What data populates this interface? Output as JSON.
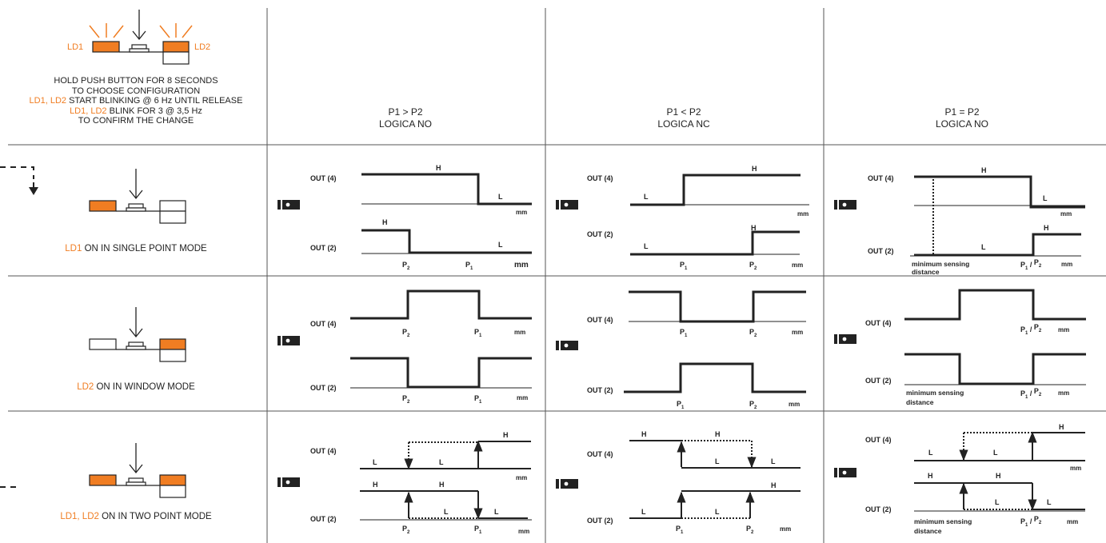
{
  "header": {
    "led_labels": {
      "ld1": "LD1",
      "ld2": "LD2"
    },
    "instructions": {
      "line1": "HOLD PUSH BUTTON FOR 8 SECONDS",
      "line2": "TO  CHOOSE CONFIGURATION",
      "line3_prefix": "LD1, LD2",
      "line3_rest": " START BLINKING @ 6 Hz UNTIL RELEASE",
      "line4_prefix": "LD1, LD2",
      "line4_rest": " BLINK FOR 3 @ 3,5 Hz",
      "line5": "TO CONFIRM THE CHANGE"
    },
    "columns": [
      {
        "condition": "P1 > P2",
        "logic": "LOGICA NO"
      },
      {
        "condition": "P1 < P2",
        "logic": "LOGICA NC"
      },
      {
        "condition": "P1 = P2",
        "logic": "LOGICA NO"
      }
    ]
  },
  "modes": [
    {
      "led": "LD1",
      "text": " ON IN SINGLE POINT MODE"
    },
    {
      "led": "LD2",
      "text": " ON IN WINDOW MODE"
    },
    {
      "led": "LD1, LD2",
      "text": " ON IN TWO POINT MODE"
    }
  ],
  "labels": {
    "out4": "OUT (4)",
    "out2": "OUT (2)",
    "high": "H",
    "low": "L",
    "mm": "mm",
    "p": "P",
    "sub1": "1",
    "sub2": "2",
    "slash": " / ",
    "min_sensing_1": "minimum sensing",
    "min_sensing_2": "distance"
  },
  "colors": {
    "accent": "#f07d22",
    "line": "#222222",
    "grid": "#555555"
  },
  "icons": [
    "led-ray-icon",
    "push-button-icon",
    "press-arrow-icon",
    "sensor-icon",
    "dashed-arrow-icon"
  ]
}
